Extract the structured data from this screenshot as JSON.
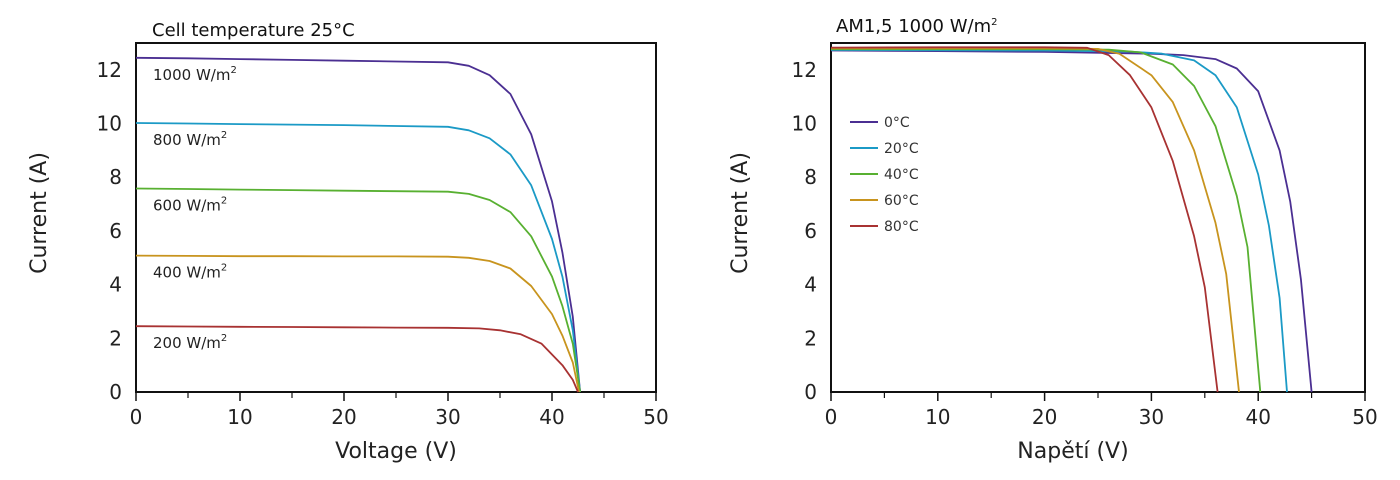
{
  "chart_data": [
    {
      "type": "line",
      "title": "Cell temperature 25°C",
      "xlabel": "Voltage (V)",
      "ylabel": "Current (A)",
      "xlim": [
        0,
        50
      ],
      "ylim": [
        0,
        13
      ],
      "x_ticks": [
        "0",
        "10",
        "20",
        "30",
        "40",
        "50"
      ],
      "y_ticks": [
        "0",
        "2",
        "4",
        "6",
        "8",
        "10",
        "12"
      ],
      "grid": false,
      "series": [
        {
          "name": "1000 W/m2",
          "label_main": "1000 W/m",
          "label_sup": "2",
          "color": "#4b2f92",
          "points": [
            [
              0,
              12.45
            ],
            [
              5,
              12.43
            ],
            [
              10,
              12.4
            ],
            [
              15,
              12.37
            ],
            [
              20,
              12.34
            ],
            [
              25,
              12.31
            ],
            [
              30,
              12.28
            ],
            [
              32,
              12.15
            ],
            [
              34,
              11.8
            ],
            [
              36,
              11.1
            ],
            [
              38,
              9.6
            ],
            [
              40,
              7.1
            ],
            [
              41,
              5.2
            ],
            [
              42,
              2.8
            ],
            [
              42.7,
              0
            ]
          ]
        },
        {
          "name": "800 W/m2",
          "label_main": "800 W/m",
          "label_sup": "2",
          "color": "#1b9ac6",
          "points": [
            [
              0,
              10.02
            ],
            [
              5,
              10.0
            ],
            [
              10,
              9.98
            ],
            [
              15,
              9.96
            ],
            [
              20,
              9.94
            ],
            [
              25,
              9.91
            ],
            [
              30,
              9.88
            ],
            [
              32,
              9.75
            ],
            [
              34,
              9.45
            ],
            [
              36,
              8.85
            ],
            [
              38,
              7.7
            ],
            [
              40,
              5.7
            ],
            [
              41,
              4.3
            ],
            [
              42,
              2.3
            ],
            [
              42.7,
              0
            ]
          ]
        },
        {
          "name": "600 W/m2",
          "label_main": "600 W/m",
          "label_sup": "2",
          "color": "#58b031",
          "points": [
            [
              0,
              7.58
            ],
            [
              5,
              7.56
            ],
            [
              10,
              7.54
            ],
            [
              15,
              7.52
            ],
            [
              20,
              7.5
            ],
            [
              25,
              7.48
            ],
            [
              30,
              7.46
            ],
            [
              32,
              7.38
            ],
            [
              34,
              7.15
            ],
            [
              36,
              6.7
            ],
            [
              38,
              5.8
            ],
            [
              40,
              4.3
            ],
            [
              41,
              3.2
            ],
            [
              42,
              1.8
            ],
            [
              42.7,
              0
            ]
          ]
        },
        {
          "name": "400 W/m2",
          "label_main": "400 W/m",
          "label_sup": "2",
          "color": "#c8941e",
          "points": [
            [
              0,
              5.08
            ],
            [
              5,
              5.07
            ],
            [
              10,
              5.06
            ],
            [
              15,
              5.06
            ],
            [
              20,
              5.05
            ],
            [
              25,
              5.05
            ],
            [
              30,
              5.04
            ],
            [
              32,
              5.0
            ],
            [
              34,
              4.88
            ],
            [
              36,
              4.6
            ],
            [
              38,
              3.95
            ],
            [
              40,
              2.9
            ],
            [
              41,
              2.1
            ],
            [
              42,
              1.1
            ],
            [
              42.6,
              0
            ]
          ]
        },
        {
          "name": "200 W/m2",
          "label_main": "200 W/m",
          "label_sup": "2",
          "color": "#a83232",
          "points": [
            [
              0,
              2.45
            ],
            [
              5,
              2.44
            ],
            [
              10,
              2.43
            ],
            [
              15,
              2.42
            ],
            [
              20,
              2.41
            ],
            [
              25,
              2.4
            ],
            [
              30,
              2.39
            ],
            [
              33,
              2.37
            ],
            [
              35,
              2.3
            ],
            [
              37,
              2.15
            ],
            [
              39,
              1.8
            ],
            [
              41,
              1.0
            ],
            [
              42,
              0.45
            ],
            [
              42.5,
              0
            ]
          ]
        }
      ]
    },
    {
      "type": "line",
      "title": "AM1,5 1000 W/m2",
      "title_main": "AM1,5 1000 W/m",
      "title_sup": "2",
      "xlabel": "Napětí (V)",
      "ylabel": "Current (A)",
      "xlim": [
        0,
        50
      ],
      "ylim": [
        0,
        13
      ],
      "x_ticks": [
        "0",
        "10",
        "20",
        "30",
        "40",
        "50"
      ],
      "y_ticks": [
        "0",
        "2",
        "4",
        "6",
        "8",
        "10",
        "12"
      ],
      "grid": false,
      "legend_position": "left",
      "series": [
        {
          "name": "0°C",
          "color": "#4b2f92",
          "points": [
            [
              0,
              12.72
            ],
            [
              10,
              12.7
            ],
            [
              20,
              12.67
            ],
            [
              30,
              12.6
            ],
            [
              33,
              12.55
            ],
            [
              36,
              12.4
            ],
            [
              38,
              12.05
            ],
            [
              40,
              11.2
            ],
            [
              42,
              9.0
            ],
            [
              43,
              7.1
            ],
            [
              44,
              4.2
            ],
            [
              45,
              0
            ]
          ]
        },
        {
          "name": "20°C",
          "color": "#1b9ac6",
          "points": [
            [
              0,
              12.74
            ],
            [
              10,
              12.73
            ],
            [
              20,
              12.72
            ],
            [
              28,
              12.68
            ],
            [
              31,
              12.6
            ],
            [
              34,
              12.35
            ],
            [
              36,
              11.8
            ],
            [
              38,
              10.6
            ],
            [
              40,
              8.1
            ],
            [
              41,
              6.2
            ],
            [
              42,
              3.5
            ],
            [
              42.7,
              0
            ]
          ]
        },
        {
          "name": "40°C",
          "color": "#58b031",
          "points": [
            [
              0,
              12.77
            ],
            [
              10,
              12.77
            ],
            [
              20,
              12.77
            ],
            [
              26,
              12.75
            ],
            [
              29,
              12.65
            ],
            [
              32,
              12.2
            ],
            [
              34,
              11.4
            ],
            [
              36,
              9.9
            ],
            [
              38,
              7.3
            ],
            [
              39,
              5.4
            ],
            [
              40.2,
              0
            ]
          ]
        },
        {
          "name": "60°C",
          "color": "#c8941e",
          "points": [
            [
              0,
              12.8
            ],
            [
              10,
              12.8
            ],
            [
              20,
              12.8
            ],
            [
              25,
              12.78
            ],
            [
              27,
              12.6
            ],
            [
              30,
              11.8
            ],
            [
              32,
              10.8
            ],
            [
              34,
              9.0
            ],
            [
              36,
              6.3
            ],
            [
              37,
              4.4
            ],
            [
              38.2,
              0
            ]
          ]
        },
        {
          "name": "80°C",
          "color": "#a83232",
          "points": [
            [
              0,
              12.83
            ],
            [
              10,
              12.84
            ],
            [
              20,
              12.84
            ],
            [
              24,
              12.82
            ],
            [
              26,
              12.55
            ],
            [
              28,
              11.8
            ],
            [
              30,
              10.6
            ],
            [
              32,
              8.6
            ],
            [
              34,
              5.8
            ],
            [
              35,
              3.9
            ],
            [
              36.2,
              0
            ]
          ]
        }
      ]
    }
  ]
}
